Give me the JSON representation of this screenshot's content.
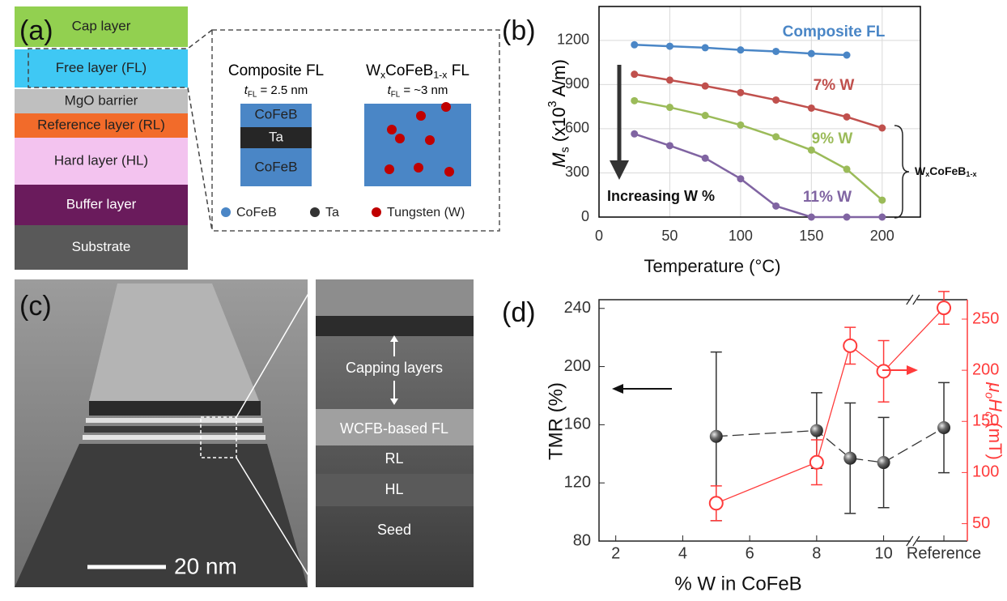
{
  "panel_a": {
    "label": "(a)",
    "layers": [
      "Cap layer",
      "Free layer (FL)",
      "MgO barrier",
      "Reference layer (RL)",
      "Hard layer (HL)",
      "Buffer layer",
      "Substrate"
    ],
    "composite": {
      "title": "Composite FL",
      "thickness": [
        "t",
        "FL",
        " = 2.5 nm"
      ],
      "blocks": [
        "CoFeB",
        "Ta",
        "CoFeB"
      ]
    },
    "alloy": {
      "title": [
        "W",
        "x",
        "CoFeB",
        "1-x",
        " FL"
      ],
      "thickness": [
        "t",
        "FL",
        " = ~3 nm"
      ]
    },
    "legend": [
      "CoFeB",
      "Ta",
      "Tungsten (W)"
    ]
  },
  "chart_data": [
    {
      "type": "line",
      "panel_label": "(b)",
      "xlabel": "Temperature (°C)",
      "ylabel": [
        "M",
        "s",
        " (x10",
        "3",
        " A/m)"
      ],
      "x": [
        25,
        50,
        75,
        100,
        125,
        150,
        175,
        200
      ],
      "series": [
        {
          "name": "Composite FL",
          "color": "#4a86c6",
          "values": [
            1170,
            1160,
            1150,
            1135,
            1125,
            1110,
            1100,
            null
          ]
        },
        {
          "name": "7% W",
          "color": "#c0504d",
          "values": [
            970,
            930,
            890,
            845,
            795,
            740,
            680,
            605
          ]
        },
        {
          "name": "9% W",
          "color": "#9bbb59",
          "values": [
            790,
            745,
            690,
            625,
            545,
            455,
            325,
            115
          ]
        },
        {
          "name": "11% W",
          "color": "#8064a2",
          "values": [
            565,
            485,
            400,
            260,
            75,
            0,
            0,
            0
          ]
        }
      ],
      "xlim": [
        0,
        227
      ],
      "ylim": [
        0,
        1430
      ],
      "xticks": [
        0,
        50,
        100,
        150,
        200
      ],
      "yticks": [
        0,
        300,
        600,
        900,
        1200
      ],
      "grid": true,
      "annotations": {
        "arrow": "Increasing W %",
        "bracket": [
          "W",
          "x",
          "CoFeB",
          "1-x"
        ]
      }
    },
    {
      "type": "scatter",
      "panel_label": "(d)",
      "xlabel": "% W in CoFeB",
      "ylabel": "TMR (%)",
      "y2label": [
        "μ",
        "o",
        "H",
        "c",
        " (mT)"
      ],
      "x": [
        5,
        8,
        9,
        10,
        11.8
      ],
      "series": [
        {
          "color": "#333333",
          "marker": "sphere",
          "values": [
            152,
            156,
            137,
            134,
            158
          ],
          "errors": [
            58,
            26,
            38,
            31,
            31
          ]
        },
        {
          "color": "#ff3b3b",
          "marker": "open",
          "axis": "y2",
          "values": [
            70,
            110,
            224,
            199,
            261
          ],
          "errors": [
            17,
            22,
            18,
            30,
            16
          ]
        }
      ],
      "xlim": [
        1.5,
        12.5
      ],
      "ylim": [
        80,
        246
      ],
      "y2lim": [
        33,
        269
      ],
      "xticks": [
        2,
        4,
        6,
        8,
        10,
        {
          "value": 11.8,
          "label": "Reference"
        }
      ],
      "yticks": [
        80,
        120,
        160,
        200,
        240
      ],
      "y2ticks": [
        50,
        100,
        150,
        200,
        250
      ]
    }
  ],
  "panel_c": {
    "label": "(c)",
    "scale_bar": "20 nm",
    "annotations": [
      "Capping layers",
      "WCFB-based FL",
      "RL",
      "HL",
      "Seed"
    ]
  }
}
